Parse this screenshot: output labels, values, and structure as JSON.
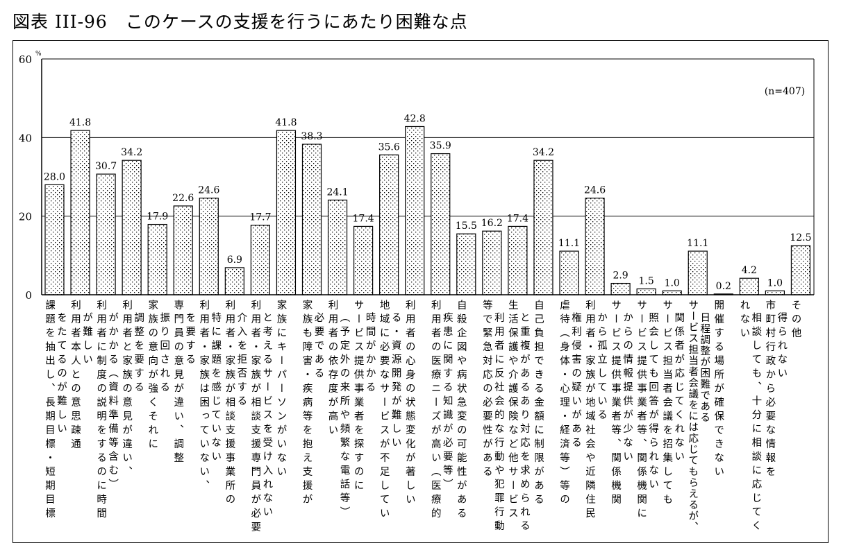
{
  "title": "図表 III-96　このケースの支援を行うにあたり困難な点",
  "chart_data": {
    "type": "bar",
    "title": "図表 III-96　このケースの支援を行うにあたり困難な点",
    "ylabel": "%",
    "ylim": [
      0,
      60
    ],
    "yticks": [
      "0",
      "20",
      "40",
      "60"
    ],
    "grid": true,
    "annotation": "(n=407)",
    "colors": {
      "bar_fill": "#ffffff",
      "dots": "#000000",
      "grid": "#000000"
    },
    "categories": [
      [
        "課題を抽出し、長期目標・短期目標",
        "をたてるのが難しい"
      ],
      [
        "利用者本人との意思疎通",
        "が難しい"
      ],
      [
        "利用者に制度の説明をするのに時間",
        "がかかる（資料準備等含む）"
      ],
      [
        "利用者と家族の意見が違い、",
        "調整を要する"
      ],
      [
        "家族の意向が強くそれに",
        "振り回される"
      ],
      [
        "専門員の意見が違い、調整",
        "を要する"
      ],
      [
        "利用者・家族は困っていない、",
        "特に課題を感じていない"
      ],
      [
        "利用者・家族が相談支援事業所の",
        "介入を拒否する"
      ],
      [
        "利用者・家族が相談支援専門員が必要",
        "と考えるサービスを受け入れない"
      ],
      [
        "家族にキーパーソンがいない"
      ],
      [
        "家族も障害・疾病等を抱え支援が",
        "必要である"
      ],
      [
        "利用者の依存度が高い",
        "（予定外の来所や頻繁な電話等）"
      ],
      [
        "サービス提供事業者を探すのに",
        "時間がかかる"
      ],
      [
        "地域に必要なサービスが不足してい",
        "る・資源開発が難しい"
      ],
      [
        "利用者の心身の状態変化が著しい"
      ],
      [
        "利用者の医療ニーズが高い（医療的",
        "疾患に関する知識が必要等）"
      ],
      [
        "自殺企図や病状急変の可能性がある"
      ],
      [
        "等で緊急対応の必要性がある",
        "利用者に反社会的な行動や犯罪行動"
      ],
      [
        "あり対応を求められる",
        "生活保護や介護保険など他サービス",
        "と重複がある"
      ],
      [
        "自己負担できる金額に制限がある"
      ],
      [
        "虐待（身体・心理・経済等）等の",
        "権利侵害の疑いがある"
      ],
      [
        "利用者・家族が地域社会や近隣住民",
        "から孤立している"
      ],
      [
        "サービス提供事業者等、関係機関",
        "からの情報提供が少ない"
      ],
      [
        "サービス提供事業者等、関係機関に",
        "照会しても回答が得られない"
      ],
      [
        "サービス担当者会議を招集しても",
        "関係者が応じてくれない"
      ],
      [
        "には応じてもらえるが、",
        "日程調整が困難である",
        "サービス担当者会議を"
      ],
      [
        "開催する場所が確保できない"
      ],
      [
        "れない",
        "相談しても、十分に相談に応じてく"
      ],
      [
        "市町村行政から必要な情報を",
        "得られない"
      ],
      [
        "その他"
      ]
    ],
    "values": [
      28.0,
      41.8,
      30.7,
      34.2,
      17.9,
      22.6,
      24.6,
      6.9,
      17.7,
      41.8,
      38.3,
      24.1,
      17.4,
      35.6,
      42.8,
      35.9,
      15.5,
      16.2,
      17.4,
      34.2,
      11.1,
      24.6,
      2.9,
      1.5,
      1.0,
      11.1,
      0.2,
      4.2,
      1.0,
      12.5
    ],
    "value_labels": [
      "28.0",
      "41.8",
      "30.7",
      "34.2",
      "17.9",
      "22.6",
      "24.6",
      "6.9",
      "17.7",
      "41.8",
      "38.3",
      "24.1",
      "17.4",
      "35.6",
      "42.8",
      "35.9",
      "15.5",
      "16.2",
      "17.4",
      "34.2",
      "11.1",
      "24.6",
      "2.9",
      "1.5",
      "1.0",
      "11.1",
      "0.2",
      "4.2",
      "1.0",
      "12.5"
    ]
  }
}
